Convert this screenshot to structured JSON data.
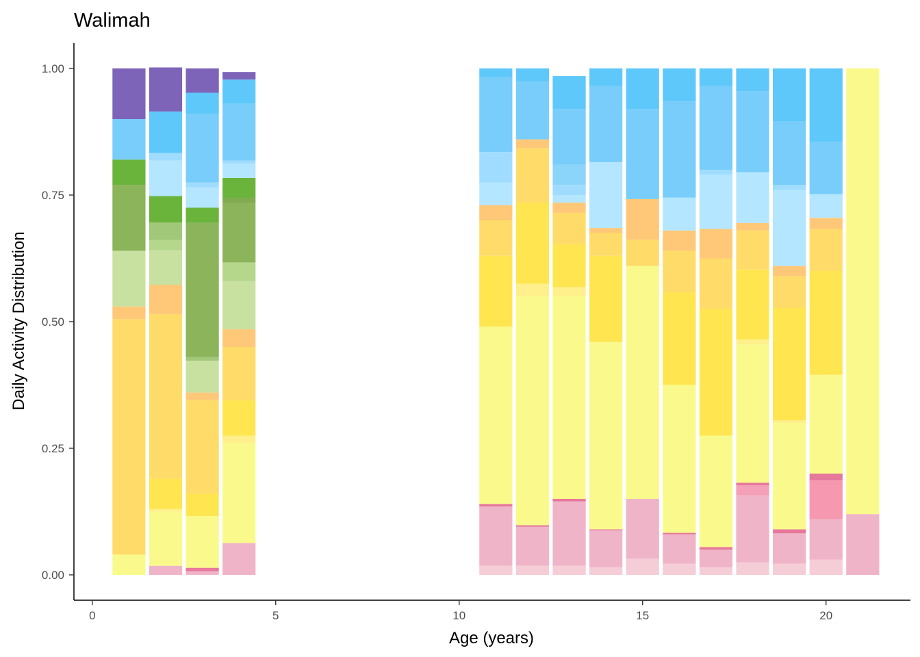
{
  "chart_data": {
    "type": "bar",
    "stacked": true,
    "title": "Walimah",
    "xlabel": "Age (years)",
    "ylabel": "Daily Activity Distribution",
    "xlim": [
      -0.5,
      22.3
    ],
    "ylim": [
      -0.05,
      1.05
    ],
    "xticks": [
      0,
      5,
      10,
      15,
      20
    ],
    "yticks": [
      0.0,
      0.25,
      0.5,
      0.75,
      1.0
    ],
    "ytick_labels": [
      "0.00",
      "0.25",
      "0.50",
      "0.75",
      "1.00"
    ],
    "bar_width": 0.9,
    "grid": false,
    "legend": "none",
    "bars": [
      {
        "x": 1,
        "segments": [
          {
            "value": 0.04,
            "color": "#FAFA8C"
          },
          {
            "value": 0.465,
            "color": "#FFDC69"
          },
          {
            "value": 0.025,
            "color": "#FFC878"
          },
          {
            "value": 0.11,
            "color": "#C8E1A0"
          },
          {
            "value": 0.13,
            "color": "#8CB45A"
          },
          {
            "value": 0.05,
            "color": "#6BB43C"
          },
          {
            "value": 0.08,
            "color": "#78CDFA"
          },
          {
            "value": 0.1,
            "color": "#7D64B9"
          }
        ]
      },
      {
        "x": 2,
        "segments": [
          {
            "value": 0.018,
            "color": "#F0B4C8"
          },
          {
            "value": 0.107,
            "color": "#FAFA8C"
          },
          {
            "value": 0.005,
            "color": "#FFF08C"
          },
          {
            "value": 0.06,
            "color": "#FFE650"
          },
          {
            "value": 0.325,
            "color": "#FFDC69"
          },
          {
            "value": 0.058,
            "color": "#FFC878"
          },
          {
            "value": 0.068,
            "color": "#C8E1A0"
          },
          {
            "value": 0.02,
            "color": "#B4D78C"
          },
          {
            "value": 0.035,
            "color": "#A0C878"
          },
          {
            "value": 0.052,
            "color": "#6BB43C"
          },
          {
            "value": 0.07,
            "color": "#B4E6FF"
          },
          {
            "value": 0.015,
            "color": "#A0DCFF"
          },
          {
            "value": 0.082,
            "color": "#5FC8FA"
          },
          {
            "value": 0.087,
            "color": "#7D64B9"
          }
        ]
      },
      {
        "x": 3,
        "segments": [
          {
            "value": 0.007,
            "color": "#F0B4C8"
          },
          {
            "value": 0.007,
            "color": "#E6789B"
          },
          {
            "value": 0.102,
            "color": "#FAFA8C"
          },
          {
            "value": 0.044,
            "color": "#FFE650"
          },
          {
            "value": 0.185,
            "color": "#FFDC69"
          },
          {
            "value": 0.015,
            "color": "#FFC878"
          },
          {
            "value": 0.063,
            "color": "#C8E1A0"
          },
          {
            "value": 0.007,
            "color": "#A0C878"
          },
          {
            "value": 0.265,
            "color": "#8CB45A"
          },
          {
            "value": 0.03,
            "color": "#6BB43C"
          },
          {
            "value": 0.04,
            "color": "#B4E6FF"
          },
          {
            "value": 0.01,
            "color": "#A0DCFF"
          },
          {
            "value": 0.135,
            "color": "#78CDFA"
          },
          {
            "value": 0.042,
            "color": "#5FC8FA"
          },
          {
            "value": 0.048,
            "color": "#7D64B9"
          }
        ]
      },
      {
        "x": 4,
        "segments": [
          {
            "value": 0.063,
            "color": "#F0B4C8"
          },
          {
            "value": 0.197,
            "color": "#FAFA8C"
          },
          {
            "value": 0.015,
            "color": "#FFF08C"
          },
          {
            "value": 0.07,
            "color": "#FFE650"
          },
          {
            "value": 0.105,
            "color": "#FFDC69"
          },
          {
            "value": 0.035,
            "color": "#FFC878"
          },
          {
            "value": 0.095,
            "color": "#C8E1A0"
          },
          {
            "value": 0.037,
            "color": "#B4D78C"
          },
          {
            "value": 0.117,
            "color": "#8CB45A"
          },
          {
            "value": 0.01,
            "color": "#82AA50"
          },
          {
            "value": 0.04,
            "color": "#6BB43C"
          },
          {
            "value": 0.028,
            "color": "#B4E6FF"
          },
          {
            "value": 0.006,
            "color": "#A0DCFF"
          },
          {
            "value": 0.112,
            "color": "#78CDFA"
          },
          {
            "value": 0.048,
            "color": "#5FC8FA"
          },
          {
            "value": 0.015,
            "color": "#7D64B9"
          }
        ]
      },
      {
        "x": 11,
        "segments": [
          {
            "value": 0.018,
            "color": "#F5CDD7"
          },
          {
            "value": 0.117,
            "color": "#F0B4C8"
          },
          {
            "value": 0.005,
            "color": "#E6789B"
          },
          {
            "value": 0.35,
            "color": "#FAFA8C"
          },
          {
            "value": 0.14,
            "color": "#FFE650"
          },
          {
            "value": 0.07,
            "color": "#FFDC69"
          },
          {
            "value": 0.03,
            "color": "#FFC878"
          },
          {
            "value": 0.045,
            "color": "#B4E6FF"
          },
          {
            "value": 0.06,
            "color": "#A0DCFF"
          },
          {
            "value": 0.148,
            "color": "#78CDFA"
          },
          {
            "value": 0.017,
            "color": "#5FC8FA"
          }
        ]
      },
      {
        "x": 12,
        "segments": [
          {
            "value": 0.018,
            "color": "#F5CDD7"
          },
          {
            "value": 0.077,
            "color": "#F0B4C8"
          },
          {
            "value": 0.003,
            "color": "#E6789B"
          },
          {
            "value": 0.452,
            "color": "#FAFA8C"
          },
          {
            "value": 0.025,
            "color": "#FFF08C"
          },
          {
            "value": 0.16,
            "color": "#FFE650"
          },
          {
            "value": 0.108,
            "color": "#FFDC69"
          },
          {
            "value": 0.017,
            "color": "#FFC878"
          },
          {
            "value": 0.115,
            "color": "#78CDFA"
          },
          {
            "value": 0.025,
            "color": "#5FC8FA"
          }
        ]
      },
      {
        "x": 13,
        "segments": [
          {
            "value": 0.018,
            "color": "#F5CDD7"
          },
          {
            "value": 0.127,
            "color": "#F0B4C8"
          },
          {
            "value": 0.005,
            "color": "#E6789B"
          },
          {
            "value": 0.4,
            "color": "#FAFA8C"
          },
          {
            "value": 0.018,
            "color": "#FFF08C"
          },
          {
            "value": 0.085,
            "color": "#FFE650"
          },
          {
            "value": 0.062,
            "color": "#FFDC69"
          },
          {
            "value": 0.02,
            "color": "#FFC878"
          },
          {
            "value": 0.015,
            "color": "#B4E6FF"
          },
          {
            "value": 0.02,
            "color": "#A0DCFF"
          },
          {
            "value": 0.04,
            "color": "#8CD5FA"
          },
          {
            "value": 0.11,
            "color": "#78CDFA"
          },
          {
            "value": 0.065,
            "color": "#5FC8FA"
          }
        ]
      },
      {
        "x": 14,
        "segments": [
          {
            "value": 0.015,
            "color": "#F5CDD7"
          },
          {
            "value": 0.073,
            "color": "#F0B4C8"
          },
          {
            "value": 0.002,
            "color": "#E6789B"
          },
          {
            "value": 0.37,
            "color": "#FAFA8C"
          },
          {
            "value": 0.17,
            "color": "#FFE650"
          },
          {
            "value": 0.045,
            "color": "#FFDC69"
          },
          {
            "value": 0.01,
            "color": "#FFC878"
          },
          {
            "value": 0.13,
            "color": "#B4E6FF"
          },
          {
            "value": 0.15,
            "color": "#78CDFA"
          },
          {
            "value": 0.035,
            "color": "#5FC8FA"
          }
        ]
      },
      {
        "x": 15,
        "segments": [
          {
            "value": 0.032,
            "color": "#F5CDD7"
          },
          {
            "value": 0.118,
            "color": "#F0B4C8"
          },
          {
            "value": 0.46,
            "color": "#FAFA8C"
          },
          {
            "value": 0.052,
            "color": "#FFDC69"
          },
          {
            "value": 0.08,
            "color": "#FFC878"
          },
          {
            "value": 0.178,
            "color": "#78CDFA"
          },
          {
            "value": 0.08,
            "color": "#5FC8FA"
          }
        ]
      },
      {
        "x": 16,
        "segments": [
          {
            "value": 0.022,
            "color": "#F5CDD7"
          },
          {
            "value": 0.058,
            "color": "#F0B4C8"
          },
          {
            "value": 0.003,
            "color": "#E6789B"
          },
          {
            "value": 0.292,
            "color": "#FAFA8C"
          },
          {
            "value": 0.183,
            "color": "#FFE650"
          },
          {
            "value": 0.082,
            "color": "#FFDC69"
          },
          {
            "value": 0.04,
            "color": "#FFC878"
          },
          {
            "value": 0.065,
            "color": "#B4E6FF"
          },
          {
            "value": 0.19,
            "color": "#78CDFA"
          },
          {
            "value": 0.065,
            "color": "#5FC8FA"
          }
        ]
      },
      {
        "x": 17,
        "segments": [
          {
            "value": 0.015,
            "color": "#F5CDD7"
          },
          {
            "value": 0.035,
            "color": "#F0B4C8"
          },
          {
            "value": 0.005,
            "color": "#E6789B"
          },
          {
            "value": 0.22,
            "color": "#FAFA8C"
          },
          {
            "value": 0.25,
            "color": "#FFE650"
          },
          {
            "value": 0.1,
            "color": "#FFDC69"
          },
          {
            "value": 0.058,
            "color": "#FFC878"
          },
          {
            "value": 0.107,
            "color": "#B4E6FF"
          },
          {
            "value": 0.01,
            "color": "#A0DCFF"
          },
          {
            "value": 0.165,
            "color": "#78CDFA"
          },
          {
            "value": 0.035,
            "color": "#5FC8FA"
          }
        ]
      },
      {
        "x": 18,
        "segments": [
          {
            "value": 0.025,
            "color": "#F5CDD7"
          },
          {
            "value": 0.132,
            "color": "#F0B4C8"
          },
          {
            "value": 0.02,
            "color": "#F5A0B9"
          },
          {
            "value": 0.005,
            "color": "#E6789B"
          },
          {
            "value": 0.273,
            "color": "#FAFA8C"
          },
          {
            "value": 0.01,
            "color": "#FFF08C"
          },
          {
            "value": 0.138,
            "color": "#FFE650"
          },
          {
            "value": 0.077,
            "color": "#FFDC69"
          },
          {
            "value": 0.015,
            "color": "#FFC878"
          },
          {
            "value": 0.1,
            "color": "#B4E6FF"
          },
          {
            "value": 0.16,
            "color": "#78CDFA"
          },
          {
            "value": 0.045,
            "color": "#5FC8FA"
          }
        ]
      },
      {
        "x": 19,
        "segments": [
          {
            "value": 0.022,
            "color": "#F5CDD7"
          },
          {
            "value": 0.06,
            "color": "#F0B4C8"
          },
          {
            "value": 0.008,
            "color": "#E6789B"
          },
          {
            "value": 0.21,
            "color": "#FAFA8C"
          },
          {
            "value": 0.005,
            "color": "#FFF08C"
          },
          {
            "value": 0.222,
            "color": "#FFE650"
          },
          {
            "value": 0.063,
            "color": "#FFDC69"
          },
          {
            "value": 0.02,
            "color": "#FFC878"
          },
          {
            "value": 0.15,
            "color": "#B4E6FF"
          },
          {
            "value": 0.01,
            "color": "#A0DCFF"
          },
          {
            "value": 0.125,
            "color": "#78CDFA"
          },
          {
            "value": 0.105,
            "color": "#5FC8FA"
          }
        ]
      },
      {
        "x": 20,
        "segments": [
          {
            "value": 0.03,
            "color": "#F5CDD7"
          },
          {
            "value": 0.08,
            "color": "#F0B4C8"
          },
          {
            "value": 0.077,
            "color": "#F598B0"
          },
          {
            "value": 0.013,
            "color": "#E6789B"
          },
          {
            "value": 0.195,
            "color": "#FAFA8C"
          },
          {
            "value": 0.205,
            "color": "#FFE650"
          },
          {
            "value": 0.083,
            "color": "#FFDC69"
          },
          {
            "value": 0.022,
            "color": "#FFC878"
          },
          {
            "value": 0.047,
            "color": "#B4E6FF"
          },
          {
            "value": 0.103,
            "color": "#78CDFA"
          },
          {
            "value": 0.145,
            "color": "#5FC8FA"
          }
        ]
      },
      {
        "x": 21,
        "segments": [
          {
            "value": 0.12,
            "color": "#F0B4C8"
          },
          {
            "value": 0.88,
            "color": "#FAFA8C"
          }
        ]
      }
    ]
  }
}
